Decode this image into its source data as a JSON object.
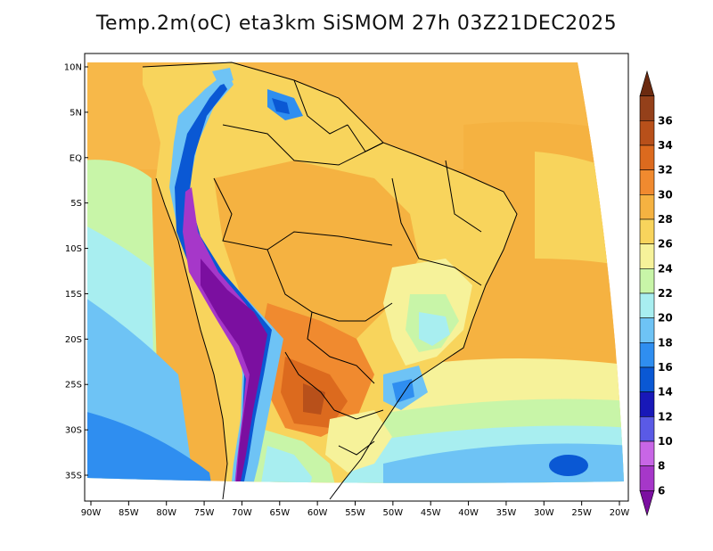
{
  "title": "Temp.2m(oC) eta3km SiSMOM 27h 03Z21DEC2025",
  "map": {
    "lon_labels": [
      "90W",
      "85W",
      "80W",
      "75W",
      "70W",
      "65W",
      "60W",
      "55W",
      "50W",
      "45W",
      "40W",
      "35W",
      "30W",
      "25W",
      "20W"
    ],
    "lat_labels": [
      "10N",
      "5N",
      "EQ",
      "5S",
      "10S",
      "15S",
      "20S",
      "25S",
      "30S",
      "35S"
    ]
  },
  "colorbar": {
    "labels": [
      "6",
      "8",
      "10",
      "12",
      "14",
      "16",
      "18",
      "20",
      "22",
      "24",
      "26",
      "28",
      "30",
      "32",
      "34",
      "36"
    ],
    "colors": [
      "#7b0fa0",
      "#a637c9",
      "#c866e6",
      "#5a5ae6",
      "#1818b8",
      "#0a58d4",
      "#2f8ef0",
      "#6ec3f5",
      "#a8eef0",
      "#c8f5a8",
      "#f6f29a",
      "#f8d45c",
      "#f5b241",
      "#f08a2f",
      "#dc6a1e",
      "#b8501a",
      "#94401a",
      "#6b2a10"
    ]
  }
}
